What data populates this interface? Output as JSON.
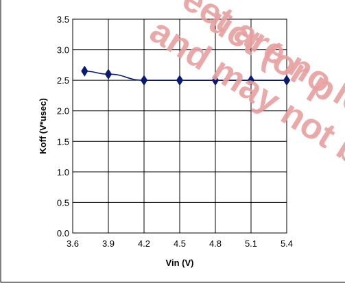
{
  "chart_data": {
    "type": "line",
    "title": "",
    "xlabel": "Vin (V)",
    "ylabel": "Koff (V*usec)",
    "xlim": [
      3.6,
      5.4
    ],
    "ylim": [
      0.0,
      3.5
    ],
    "x_ticks": [
      "3.6",
      "3.9",
      "4.2",
      "4.5",
      "4.8",
      "5.1",
      "5.4"
    ],
    "y_ticks": [
      "0.0",
      "0.5",
      "1.0",
      "1.5",
      "2.0",
      "2.5",
      "3.0",
      "3.5"
    ],
    "grid": true,
    "legend": "none",
    "series": [
      {
        "x": [
          3.7,
          3.9,
          4.2,
          4.5,
          4.8,
          5.1,
          5.4
        ],
        "y": [
          2.65,
          2.6,
          2.5,
          2.5,
          2.5,
          2.5,
          2.5
        ],
        "color": "#0a1a70",
        "marker": "diamond"
      }
    ]
  },
  "watermark": {
    "line1": "eet are no lon",
    "line1_prefix": "uct (or p",
    "line2": "and may not be o",
    "color": "#e8a0a0"
  }
}
